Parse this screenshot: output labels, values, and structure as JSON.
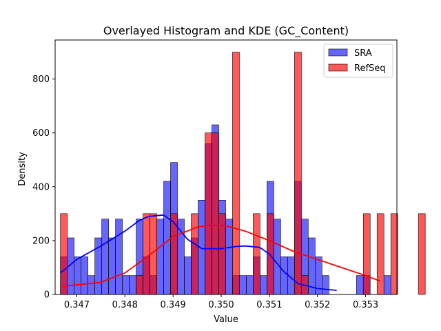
{
  "chart_data": {
    "type": "bar",
    "title": "Overlayed Histogram and KDE (GC_Content)",
    "xlabel": "Value",
    "ylabel": "Density",
    "xlim": [
      0.34655,
      0.35365
    ],
    "ylim": [
      0,
      945
    ],
    "xticks": [
      0.347,
      0.348,
      0.349,
      0.35,
      0.351,
      0.352,
      0.353
    ],
    "xtick_labels": [
      "0.347",
      "0.348",
      "0.349",
      "0.350",
      "0.351",
      "0.352",
      "0.353"
    ],
    "yticks": [
      0,
      200,
      400,
      600,
      800
    ],
    "ytick_labels": [
      "0",
      "200",
      "400",
      "600",
      "800"
    ],
    "legend": {
      "position": "top-right",
      "entries": [
        "SRA",
        "RefSeq"
      ]
    },
    "grid": false,
    "series": [
      {
        "name": "SRA",
        "color": "#0000ff",
        "bin_start": 0.34666,
        "bin_width": 0.000143,
        "values": [
          140,
          210,
          140,
          140,
          70,
          210,
          280,
          210,
          280,
          70,
          70,
          280,
          140,
          70,
          280,
          420,
          490,
          280,
          140,
          210,
          350,
          560,
          630,
          350,
          280,
          70,
          70,
          70,
          140,
          70,
          420,
          280,
          140,
          140,
          420,
          280,
          210,
          140,
          70,
          0,
          0,
          0,
          0,
          70,
          70,
          0,
          0,
          70
        ],
        "kde_x": [
          0.34666,
          0.347,
          0.3475,
          0.348,
          0.3483,
          0.3485,
          0.3488,
          0.349,
          0.3493,
          0.3496,
          0.35,
          0.3503,
          0.3505,
          0.3508,
          0.351,
          0.3513,
          0.3516,
          0.352,
          0.3524
        ],
        "kde_y": [
          80,
          130,
          180,
          235,
          275,
          290,
          295,
          270,
          205,
          170,
          170,
          178,
          180,
          175,
          150,
          85,
          40,
          22,
          15
        ]
      },
      {
        "name": "RefSeq",
        "color": "#ff0000",
        "bin_start": 0.34666,
        "bin_width": 0.000143,
        "values": [
          300,
          0,
          0,
          0,
          0,
          0,
          0,
          0,
          0,
          0,
          0,
          70,
          300,
          300,
          0,
          0,
          300,
          0,
          0,
          300,
          0,
          600,
          600,
          300,
          0,
          900,
          0,
          0,
          300,
          0,
          300,
          0,
          0,
          0,
          900,
          70,
          0,
          0,
          0,
          0,
          0,
          0,
          0,
          0,
          300,
          0,
          300,
          0,
          300,
          0,
          0,
          0,
          300
        ],
        "kde_x": [
          0.3467,
          0.3475,
          0.348,
          0.3485,
          0.349,
          0.3495,
          0.3498,
          0.3501,
          0.3505,
          0.351,
          0.3515,
          0.352,
          0.3525,
          0.353,
          0.3533
        ],
        "kde_y": [
          30,
          45,
          80,
          145,
          215,
          250,
          258,
          255,
          235,
          200,
          160,
          130,
          100,
          70,
          50
        ]
      }
    ]
  }
}
